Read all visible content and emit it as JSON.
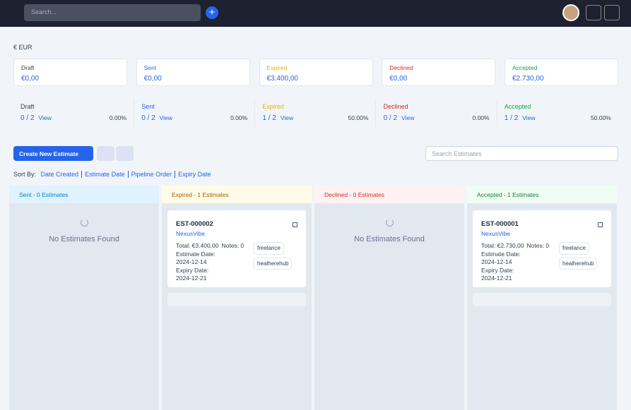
{
  "topbar": {
    "search_placeholder": "Search..."
  },
  "currency": "€ EUR",
  "summary_cards": [
    {
      "label": "Draft",
      "amount": "€0,00"
    },
    {
      "label": "Sent",
      "amount": "€0,00"
    },
    {
      "label": "Expired",
      "amount": "€3.400,00"
    },
    {
      "label": "Declined",
      "amount": "€0,00"
    },
    {
      "label": "Accepted",
      "amount": "€2.730,00"
    }
  ],
  "stats": [
    {
      "label": "Draft",
      "count": "0 / 2",
      "link": "View",
      "percent": "0.00%"
    },
    {
      "label": "Sent",
      "count": "0 / 2",
      "link": "View",
      "percent": "0.00%"
    },
    {
      "label": "Expired",
      "count": "1 / 2",
      "link": "View",
      "percent": "50.00%"
    },
    {
      "label": "Declined",
      "count": "0 / 2",
      "link": "View",
      "percent": "0.00%"
    },
    {
      "label": "Accepted",
      "count": "1 / 2",
      "link": "View",
      "percent": "50.00%"
    }
  ],
  "toolbar": {
    "create_button": "Create New Estimate",
    "search_placeholder": "Search Estimates"
  },
  "sort": {
    "label": "Sort By:",
    "options": [
      "Date Created",
      "Estimate Date",
      "Pipeline Order",
      "Expiry Date"
    ]
  },
  "columns": [
    {
      "title": "Sent - 0 Estimates",
      "empty": "No Estimates Found",
      "cards": []
    },
    {
      "title": "Expired - 1 Estimates",
      "cards": [
        {
          "number": "EST-000002",
          "client": "NexusVibe",
          "total": "Total: €3.400,00",
          "notes": "Notes: 0",
          "estimate_date_label": "Estimate Date:",
          "estimate_date": "2024-12-14",
          "expiry_date_label": "Expiry Date:",
          "expiry_date": "2024-12-21",
          "tags": [
            "freelance",
            "healherehub"
          ]
        }
      ]
    },
    {
      "title": "Declined - 0 Estimates",
      "empty": "No Estimates Found",
      "cards": []
    },
    {
      "title": "Accepted - 1 Estimates",
      "cards": [
        {
          "number": "EST-000001",
          "client": "NexusVibe",
          "total": "Total: €2.730,00",
          "notes": "Notes: 0",
          "estimate_date_label": "Estimate Date:",
          "estimate_date": "2024-12-14",
          "expiry_date_label": "Expiry Date:",
          "expiry_date": "2024-12-21",
          "tags": [
            "freelance",
            "healherehub"
          ]
        }
      ]
    }
  ]
}
